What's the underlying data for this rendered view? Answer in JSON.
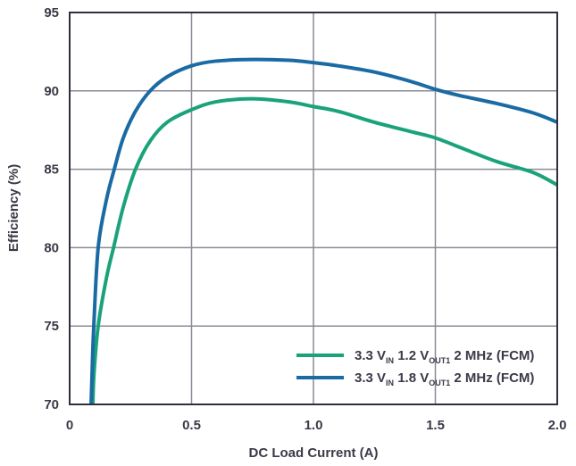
{
  "chart_data": {
    "type": "line",
    "title": "",
    "xlabel": "DC Load Current (A)",
    "ylabel": "Efficiency (%)",
    "xlim": [
      0,
      2.0
    ],
    "ylim": [
      70,
      95
    ],
    "xticks": [
      "0",
      "0.5",
      "1.0",
      "1.5",
      "2.0"
    ],
    "yticks": [
      "70",
      "75",
      "80",
      "85",
      "90",
      "95"
    ],
    "xtick_values": [
      0,
      0.5,
      1.0,
      1.5,
      2.0
    ],
    "ytick_values": [
      70,
      75,
      80,
      85,
      90,
      95
    ],
    "grid": true,
    "legend_position": "bottom-right",
    "series": [
      {
        "name": "3.3 VIN 1.2 VOUT1 2 MHz (FCM)",
        "legend": {
          "a": "3.3 V",
          "sub1": "IN",
          "b": " 1.2 V",
          "sub2": "OUT1",
          "c": " 2 MHz (FCM)"
        },
        "color": "#1aa37a",
        "x": [
          0.095,
          0.1,
          0.117,
          0.15,
          0.18,
          0.22,
          0.27,
          0.33,
          0.4,
          0.5,
          0.6,
          0.75,
          0.9,
          1.0,
          1.1,
          1.25,
          1.4,
          1.5,
          1.6,
          1.75,
          1.9,
          2.0
        ],
        "y": [
          70,
          72,
          75,
          78,
          80,
          82.6,
          85,
          86.8,
          88,
          88.8,
          89.3,
          89.5,
          89.3,
          89.0,
          88.7,
          88.0,
          87.4,
          87.0,
          86.4,
          85.5,
          84.8,
          84.0
        ]
      },
      {
        "name": "3.3 VIN 1.8 VOUT1 2 MHz (FCM)",
        "legend": {
          "a": "3.3 V",
          "sub1": "IN",
          "b": " 1.8 V",
          "sub2": "OUT1",
          "c": " 2 MHz (FCM)"
        },
        "color": "#1a6aa3",
        "x": [
          0.088,
          0.092,
          0.099,
          0.117,
          0.15,
          0.183,
          0.22,
          0.27,
          0.33,
          0.4,
          0.5,
          0.6,
          0.75,
          0.9,
          1.0,
          1.1,
          1.25,
          1.4,
          1.5,
          1.6,
          1.75,
          1.9,
          2.0
        ],
        "y": [
          70,
          72,
          75,
          80,
          83,
          85,
          87,
          88.7,
          90,
          90.9,
          91.6,
          91.9,
          92.0,
          91.95,
          91.8,
          91.6,
          91.2,
          90.6,
          90.1,
          89.7,
          89.2,
          88.6,
          88.0
        ]
      }
    ]
  }
}
